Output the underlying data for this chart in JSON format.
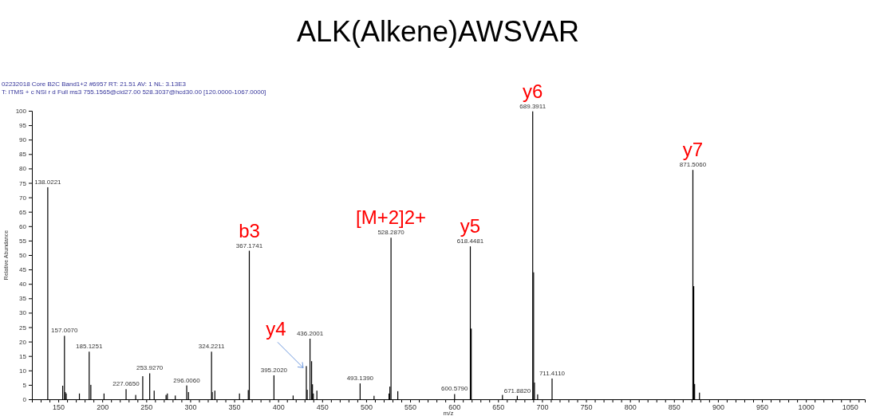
{
  "chart_data": {
    "type": "bar",
    "title": "ALK(Alkene)AWSVAR",
    "subtitle": "02232018  Core  B2C  Band1+2 #6957   RT: 21.51   AV: 1   NL: 3.13E3\nT: ITMS + c NSI r d Full ms3 755.1565@cid27.00 528.3037@hcd30.00 [120.0000-1067.0000]",
    "xlabel": "m/z",
    "ylabel": "Relative Abundance",
    "color": "#000000",
    "x": [
      138.0221,
      155,
      157.007,
      158,
      159,
      174,
      185.1251,
      187,
      202,
      227.065,
      238,
      246,
      253.927,
      259,
      272.5,
      274,
      283,
      296.006,
      298,
      324.2211,
      325,
      328,
      356,
      366,
      367.1741,
      395.202,
      417,
      432,
      433,
      436.2001,
      438,
      439,
      440,
      444,
      493.139,
      509,
      526,
      527,
      528.287,
      536,
      600.579,
      618.4481,
      619.5,
      655,
      671.882,
      689.3911,
      690.4,
      691.4,
      695,
      711.411,
      871.506,
      872.5,
      873.5,
      879
    ],
    "values": [
      73.5,
      4.7,
      22,
      2.5,
      2,
      2,
      16.5,
      5,
      2,
      3.5,
      1.5,
      8,
      9,
      3,
      1.5,
      2,
      1.3,
      4.8,
      2.5,
      16.5,
      2.5,
      3,
      2,
      3.2,
      51.5,
      8.3,
      1.3,
      11.5,
      3.3,
      21,
      13.2,
      5.2,
      2,
      3,
      5.5,
      1.2,
      2,
      4.4,
      56,
      2.8,
      1.8,
      53,
      24.5,
      1.5,
      1.2,
      99.8,
      44,
      5.8,
      1.7,
      7.2,
      79.5,
      39.2,
      5.3,
      2.3
    ],
    "annotations": [
      {
        "text": "138.0221",
        "x": 138.0221,
        "y": 73.5
      },
      {
        "text": "157.0070",
        "x": 157.007,
        "y": 22
      },
      {
        "text": "185.1251",
        "x": 185.1251,
        "y": 16.5
      },
      {
        "text": "227.0650",
        "x": 227.065,
        "y": 3.5
      },
      {
        "text": "253.9270",
        "x": 253.927,
        "y": 9
      },
      {
        "text": "296.0060",
        "x": 296.006,
        "y": 4.8
      },
      {
        "text": "324.2211",
        "x": 324.2211,
        "y": 16.5
      },
      {
        "text": "367.1741",
        "x": 367.1741,
        "y": 51.5
      },
      {
        "text": "395.2020",
        "x": 395.202,
        "y": 8.3
      },
      {
        "text": "436.2001",
        "x": 436.2001,
        "y": 21
      },
      {
        "text": "493.1390",
        "x": 493.139,
        "y": 5.5
      },
      {
        "text": "528.2870",
        "x": 528.287,
        "y": 56
      },
      {
        "text": "600.5790",
        "x": 600.579,
        "y": 1.8
      },
      {
        "text": "618.4481",
        "x": 618.4481,
        "y": 53
      },
      {
        "text": "671.8820",
        "x": 671.882,
        "y": 1.2
      },
      {
        "text": "689.3911",
        "x": 689.3911,
        "y": 99.8
      },
      {
        "text": "711.4110",
        "x": 711.411,
        "y": 7.2
      },
      {
        "text": "871.5060",
        "x": 871.506,
        "y": 79.5
      },
      {
        "text": "b3",
        "x": 367.1741,
        "y": 51.5
      },
      {
        "text": "y4",
        "x": 432,
        "y": 11.5
      },
      {
        "text": "[M+2]2+",
        "x": 528.287,
        "y": 56
      },
      {
        "text": "y5",
        "x": 618.4481,
        "y": 53
      },
      {
        "text": "y6",
        "x": 689.3911,
        "y": 99.8
      },
      {
        "text": "y7",
        "x": 871.506,
        "y": 79.5
      }
    ],
    "xlim": [
      120,
      1067
    ],
    "ylim": [
      0,
      100
    ],
    "xticks": [
      {
        "value": 130,
        "label": null
      },
      {
        "value": 140,
        "label": null
      },
      150,
      {
        "value": 160,
        "label": null
      },
      {
        "value": 170,
        "label": null
      },
      {
        "value": 180,
        "label": null
      },
      {
        "value": 190,
        "label": null
      },
      200,
      {
        "value": 210,
        "label": null
      },
      {
        "value": 220,
        "label": null
      },
      {
        "value": 230,
        "label": null
      },
      {
        "value": 240,
        "label": null
      },
      250,
      {
        "value": 260,
        "label": null
      },
      {
        "value": 270,
        "label": null
      },
      {
        "value": 280,
        "label": null
      },
      {
        "value": 290,
        "label": null
      },
      300,
      {
        "value": 310,
        "label": null
      },
      {
        "value": 320,
        "label": null
      },
      {
        "value": 330,
        "label": null
      },
      {
        "value": 340,
        "label": null
      },
      350,
      {
        "value": 360,
        "label": null
      },
      {
        "value": 370,
        "label": null
      },
      {
        "value": 380,
        "label": null
      },
      {
        "value": 390,
        "label": null
      },
      400,
      {
        "value": 410,
        "label": null
      },
      {
        "value": 420,
        "label": null
      },
      {
        "value": 430,
        "label": null
      },
      {
        "value": 440,
        "label": null
      },
      450,
      {
        "value": 460,
        "label": null
      },
      {
        "value": 470,
        "label": null
      },
      {
        "value": 480,
        "label": null
      },
      {
        "value": 490,
        "label": null
      },
      500,
      {
        "value": 510,
        "label": null
      },
      {
        "value": 520,
        "label": null
      },
      {
        "value": 530,
        "label": null
      },
      {
        "value": 540,
        "label": null
      },
      550,
      {
        "value": 560,
        "label": null
      },
      {
        "value": 570,
        "label": null
      },
      {
        "value": 580,
        "label": null
      },
      {
        "value": 590,
        "label": null
      },
      600,
      {
        "value": 610,
        "label": null
      },
      {
        "value": 620,
        "label": null
      },
      {
        "value": 630,
        "label": null
      },
      {
        "value": 640,
        "label": null
      },
      650,
      {
        "value": 660,
        "label": null
      },
      {
        "value": 670,
        "label": null
      },
      {
        "value": 680,
        "label": null
      },
      {
        "value": 690,
        "label": null
      },
      700,
      {
        "value": 710,
        "label": null
      },
      {
        "value": 720,
        "label": null
      },
      {
        "value": 730,
        "label": null
      },
      {
        "value": 740,
        "label": null
      },
      750,
      {
        "value": 760,
        "label": null
      },
      {
        "value": 770,
        "label": null
      },
      {
        "value": 780,
        "label": null
      },
      {
        "value": 790,
        "label": null
      },
      800,
      {
        "value": 810,
        "label": null
      },
      {
        "value": 820,
        "label": null
      },
      {
        "value": 830,
        "label": null
      },
      {
        "value": 840,
        "label": null
      },
      850,
      {
        "value": 860,
        "label": null
      },
      {
        "value": 870,
        "label": null
      },
      {
        "value": 880,
        "label": null
      },
      {
        "value": 890,
        "label": null
      },
      900,
      {
        "value": 910,
        "label": null
      },
      {
        "value": 920,
        "label": null
      },
      {
        "value": 930,
        "label": null
      },
      {
        "value": 940,
        "label": null
      },
      950,
      {
        "value": 960,
        "label": null
      },
      {
        "value": 970,
        "label": null
      },
      {
        "value": 980,
        "label": null
      },
      {
        "value": 990,
        "label": null
      },
      1000,
      {
        "value": 1010,
        "label": null
      },
      {
        "value": 1020,
        "label": null
      },
      {
        "value": 1030,
        "label": null
      },
      {
        "value": 1040,
        "label": null
      },
      1050,
      {
        "value": 1060,
        "label": null
      }
    ],
    "yticks": [
      0,
      5,
      10,
      15,
      20,
      25,
      30,
      35,
      40,
      45,
      50,
      55,
      60,
      65,
      70,
      75,
      80,
      85,
      90,
      95,
      100
    ]
  }
}
